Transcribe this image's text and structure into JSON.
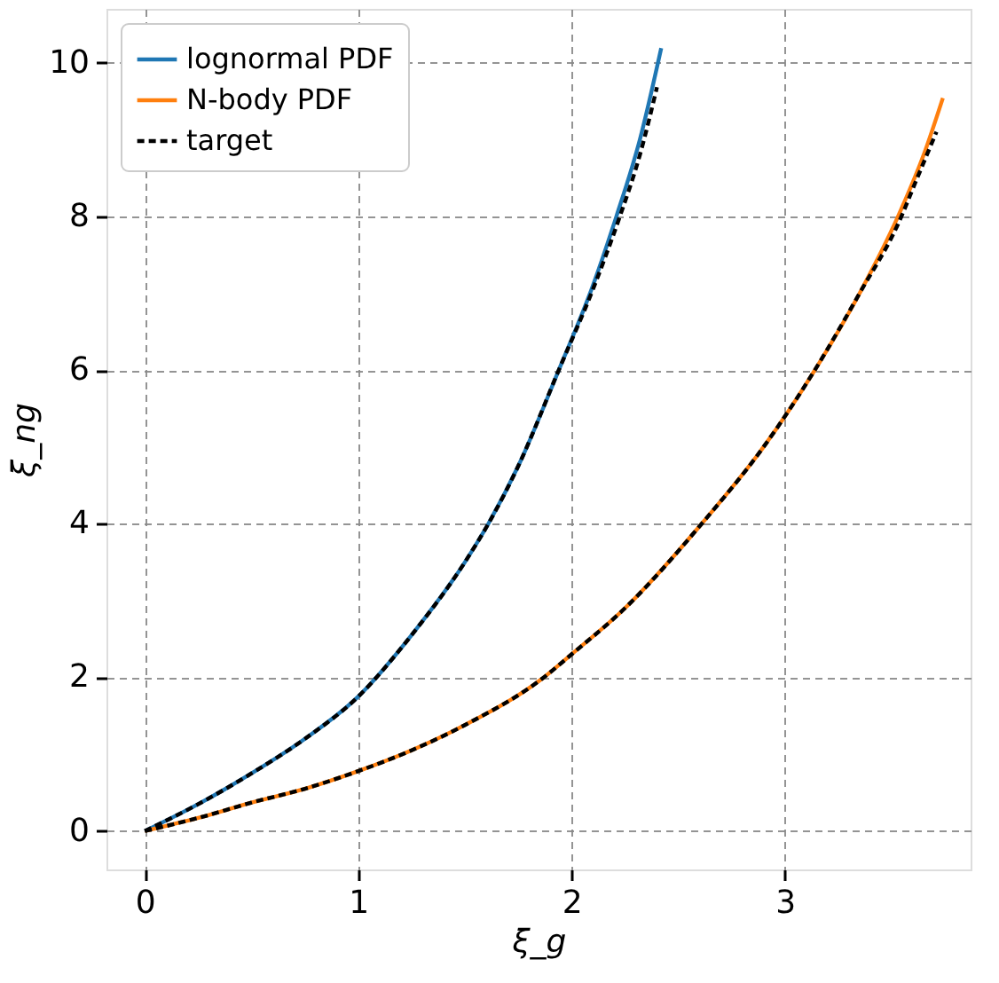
{
  "chart_data": {
    "type": "line",
    "xlabel": "ξ_g",
    "ylabel": "ξ_ng",
    "xlim": [
      -0.18,
      3.87
    ],
    "ylim": [
      -0.5,
      10.7
    ],
    "xticks": [
      0,
      1,
      2,
      3
    ],
    "yticks": [
      0,
      2,
      4,
      6,
      8,
      10
    ],
    "grid": true,
    "legend": "top left",
    "series": [
      {
        "name": "lognormal PDF",
        "color": "#1f77b4",
        "line_style": "solid",
        "x": [
          0,
          0.25,
          0.5,
          0.75,
          1,
          1.25,
          1.5,
          1.61,
          1.75,
          1.94,
          2.1,
          2.21,
          2.32,
          2.42
        ],
        "values": [
          0,
          0.35,
          0.75,
          1.2,
          1.75,
          2.55,
          3.5,
          4,
          4.75,
          6,
          7.1,
          8,
          9,
          10.19
        ]
      },
      {
        "name": "N-body PDF",
        "color": "#ff7f0e",
        "line_style": "solid",
        "x": [
          0,
          0.25,
          0.5,
          0.75,
          1,
          1.25,
          1.5,
          1.87,
          2,
          2.25,
          2.61,
          2.9,
          3.14,
          3.35,
          3.53,
          3.65,
          3.74
        ],
        "values": [
          0,
          0.17,
          0.37,
          0.55,
          0.78,
          1.05,
          1.38,
          2,
          2.3,
          2.9,
          4,
          5,
          6,
          7,
          8,
          8.8,
          9.54
        ]
      },
      {
        "name": "target",
        "color": "#000000",
        "line_style": "dashed",
        "x": [
          0,
          0.25,
          0.5,
          0.75,
          1,
          1.25,
          1.5,
          1.61,
          1.75,
          1.94,
          2.1,
          2.22,
          2.32,
          2.4
        ],
        "values": [
          0,
          0.35,
          0.75,
          1.2,
          1.75,
          2.55,
          3.5,
          4,
          4.75,
          6,
          7.05,
          7.95,
          8.8,
          9.68
        ]
      },
      {
        "color": "#000000",
        "line_style": "dashed",
        "x": [
          0,
          0.25,
          0.5,
          0.75,
          1,
          1.25,
          1.5,
          1.87,
          2,
          2.25,
          2.61,
          2.9,
          3.14,
          3.35,
          3.53,
          3.62,
          3.71
        ],
        "values": [
          0,
          0.17,
          0.37,
          0.55,
          0.78,
          1.05,
          1.38,
          2,
          2.3,
          2.9,
          4,
          5,
          6,
          7,
          7.9,
          8.5,
          9.1
        ]
      }
    ]
  }
}
